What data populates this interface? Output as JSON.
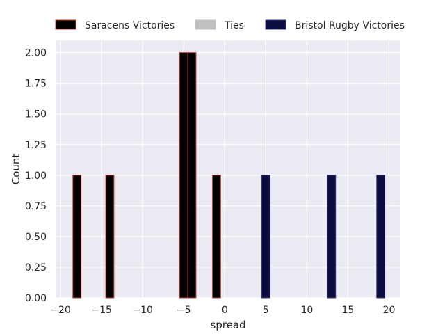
{
  "chart_data": {
    "type": "bar",
    "title": "",
    "xlabel": "spread",
    "ylabel": "Count",
    "xlim": [
      -20.6,
      21.4
    ],
    "ylim": [
      0,
      2.1
    ],
    "xticks": [
      -20,
      -15,
      -10,
      -5,
      0,
      5,
      10,
      15,
      20
    ],
    "xtick_labels": [
      "−20",
      "−15",
      "−10",
      "−5",
      "0",
      "5",
      "10",
      "15",
      "20"
    ],
    "yticks": [
      0,
      0.25,
      0.5,
      0.75,
      1.0,
      1.25,
      1.5,
      1.75,
      2.0
    ],
    "ytick_labels": [
      "0.00",
      "0.25",
      "0.50",
      "0.75",
      "1.00",
      "1.25",
      "1.50",
      "1.75",
      "2.00"
    ],
    "grid": true,
    "legend_position": "top-center",
    "bin_width": 1,
    "series": [
      {
        "name": "Saracens Victories",
        "color": "#000000",
        "edge_color": "#c0392b",
        "bars": [
          {
            "x": -18,
            "value": 1
          },
          {
            "x": -14,
            "value": 1
          },
          {
            "x": -5,
            "value": 2
          },
          {
            "x": -4,
            "value": 2
          },
          {
            "x": -1,
            "value": 1
          }
        ]
      },
      {
        "name": "Ties",
        "color": "#c0c0c0",
        "edge_color": "#c0c0c0",
        "bars": []
      },
      {
        "name": "Bristol Rugby Victories",
        "color": "#0c0c40",
        "edge_color": "#3a3a7a",
        "bars": [
          {
            "x": 5,
            "value": 1
          },
          {
            "x": 13,
            "value": 1
          },
          {
            "x": 19,
            "value": 1
          }
        ]
      }
    ]
  }
}
